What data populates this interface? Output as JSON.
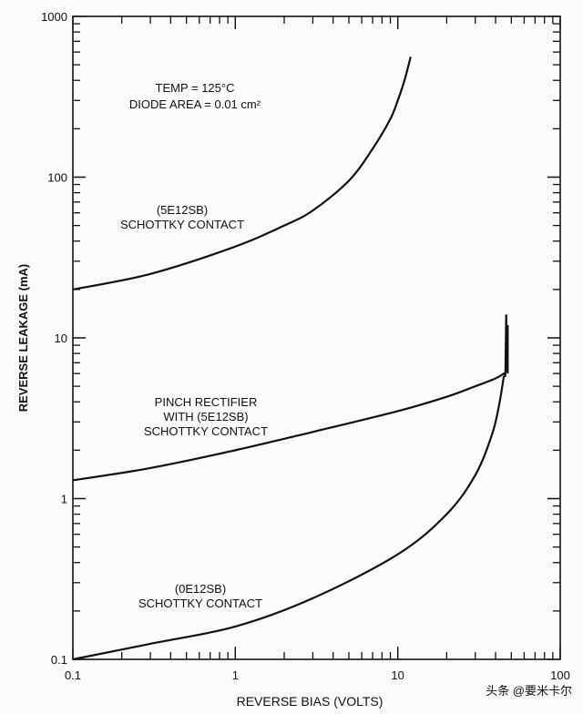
{
  "chart_data": {
    "type": "line",
    "title": "",
    "xlabel": "REVERSE BIAS (VOLTS)",
    "ylabel": "REVERSE LEAKAGE (mA)",
    "xscale": "log",
    "yscale": "log",
    "xlim": [
      0.1,
      100
    ],
    "ylim": [
      0.1,
      1000
    ],
    "xticks": [
      "0.1",
      "1",
      "10",
      "100"
    ],
    "yticks": [
      "0.1",
      "1",
      "10",
      "100",
      "1000"
    ],
    "grid": false,
    "annotations": {
      "conditions_line1": "TEMP = 125°C",
      "conditions_line2": "DIODE AREA = 0.01 cm²",
      "label_a_line1": "(5E12SB)",
      "label_a_line2": "SCHOTTKY CONTACT",
      "label_b_line1": "PINCH RECTIFIER",
      "label_b_line2": "WITH (5E12SB)",
      "label_b_line3": "SCHOTTKY CONTACT",
      "label_c_line1": "(0E12SB)",
      "label_c_line2": "SCHOTTKY CONTACT"
    },
    "series": [
      {
        "name": "(5E12SB) SCHOTTKY CONTACT",
        "x": [
          0.1,
          0.3,
          1,
          2,
          3,
          5,
          7,
          9,
          10,
          11,
          12
        ],
        "y": [
          20,
          25,
          37,
          50,
          62,
          95,
          150,
          230,
          300,
          400,
          560
        ]
      },
      {
        "name": "PINCH RECTIFIER WITH (5E12SB) SCHOTTKY CONTACT",
        "x": [
          0.1,
          0.3,
          1,
          3,
          10,
          20,
          30,
          40,
          45,
          46,
          46.5,
          47,
          47.5,
          47.5
        ],
        "y": [
          1.3,
          1.55,
          2.0,
          2.6,
          3.5,
          4.3,
          5.0,
          5.6,
          6.0,
          6.2,
          14,
          6.2,
          12,
          6.0
        ]
      },
      {
        "name": "(0E12SB) SCHOTTKY CONTACT",
        "x": [
          0.1,
          0.3,
          1,
          3,
          10,
          20,
          30,
          38,
          42,
          45
        ],
        "y": [
          0.1,
          0.125,
          0.16,
          0.24,
          0.45,
          0.8,
          1.4,
          2.5,
          3.8,
          5.8
        ]
      }
    ]
  },
  "watermark": "头条 @要米卡尔"
}
